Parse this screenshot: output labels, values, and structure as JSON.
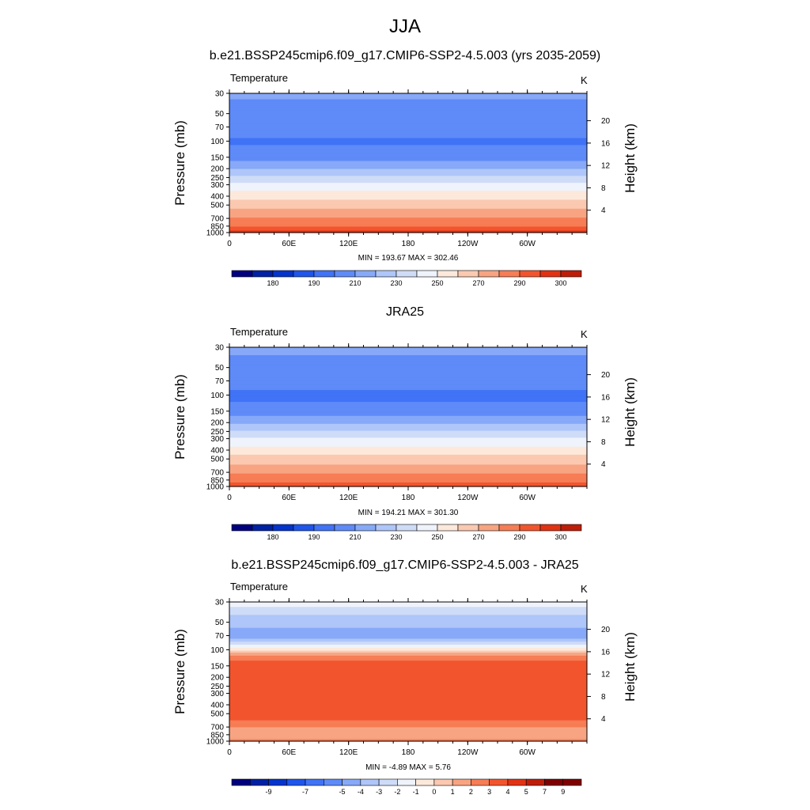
{
  "figure": {
    "title": "JJA"
  },
  "chart_data": [
    {
      "type": "heatmap",
      "title": "b.e21.BSSP245cmip6.f09_g17.CMIP6-SSP2-4.5.003 (yrs 2035-2059)",
      "variable": "Temperature",
      "units": "K",
      "xlabel": "",
      "ylabel": "Pressure (mb)",
      "y2label": "Height (km)",
      "x_ticks": [
        "0",
        "60E",
        "120E",
        "180",
        "120W",
        "60W"
      ],
      "x_range": [
        0,
        360
      ],
      "y_ticks": [
        30,
        50,
        70,
        100,
        150,
        200,
        250,
        300,
        400,
        500,
        700,
        850,
        1000
      ],
      "y_range": [
        30,
        1000
      ],
      "y_scale": "log",
      "y2_ticks": [
        4,
        8,
        12,
        16,
        20
      ],
      "stats": "MIN = 193.67  MAX = 302.46",
      "min": 193.67,
      "max": 302.46,
      "levels": [
        175,
        180,
        185,
        190,
        200,
        210,
        220,
        230,
        240,
        250,
        260,
        270,
        280,
        290,
        295,
        300
      ],
      "colorbar_labels": [
        "180",
        "190",
        "210",
        "230",
        "250",
        "270",
        "290",
        "300"
      ],
      "profile": [
        {
          "p": 30,
          "t": 213
        },
        {
          "p": 40,
          "t": 207
        },
        {
          "p": 50,
          "t": 205
        },
        {
          "p": 70,
          "t": 203
        },
        {
          "p": 100,
          "t": 199
        },
        {
          "p": 120,
          "t": 201
        },
        {
          "p": 150,
          "t": 206
        },
        {
          "p": 175,
          "t": 212
        },
        {
          "p": 200,
          "t": 220
        },
        {
          "p": 230,
          "t": 228
        },
        {
          "p": 250,
          "t": 233
        },
        {
          "p": 300,
          "t": 243
        },
        {
          "p": 350,
          "t": 250
        },
        {
          "p": 400,
          "t": 256
        },
        {
          "p": 450,
          "t": 262
        },
        {
          "p": 500,
          "t": 266
        },
        {
          "p": 600,
          "t": 274
        },
        {
          "p": 700,
          "t": 281
        },
        {
          "p": 800,
          "t": 286
        },
        {
          "p": 850,
          "t": 289
        },
        {
          "p": 925,
          "t": 293
        },
        {
          "p": 1000,
          "t": 297
        }
      ]
    },
    {
      "type": "heatmap",
      "title": "JRA25",
      "variable": "Temperature",
      "units": "K",
      "xlabel": "",
      "ylabel": "Pressure (mb)",
      "y2label": "Height (km)",
      "x_ticks": [
        "0",
        "60E",
        "120E",
        "180",
        "120W",
        "60W"
      ],
      "x_range": [
        0,
        360
      ],
      "y_ticks": [
        30,
        50,
        70,
        100,
        150,
        200,
        250,
        300,
        400,
        500,
        700,
        850,
        1000
      ],
      "y_range": [
        30,
        1000
      ],
      "y_scale": "log",
      "y2_ticks": [
        4,
        8,
        12,
        16,
        20
      ],
      "stats": "MIN = 194.21  MAX = 301.30",
      "min": 194.21,
      "max": 301.3,
      "levels": [
        175,
        180,
        185,
        190,
        200,
        210,
        220,
        230,
        240,
        250,
        260,
        270,
        280,
        290,
        295,
        300
      ],
      "colorbar_labels": [
        "180",
        "190",
        "210",
        "230",
        "250",
        "270",
        "290",
        "300"
      ],
      "profile": [
        {
          "p": 30,
          "t": 214
        },
        {
          "p": 40,
          "t": 208
        },
        {
          "p": 50,
          "t": 206
        },
        {
          "p": 70,
          "t": 204
        },
        {
          "p": 100,
          "t": 198
        },
        {
          "p": 120,
          "t": 200
        },
        {
          "p": 150,
          "t": 206
        },
        {
          "p": 175,
          "t": 211
        },
        {
          "p": 200,
          "t": 218
        },
        {
          "p": 230,
          "t": 226
        },
        {
          "p": 250,
          "t": 231
        },
        {
          "p": 300,
          "t": 241
        },
        {
          "p": 350,
          "t": 248
        },
        {
          "p": 400,
          "t": 254
        },
        {
          "p": 450,
          "t": 260
        },
        {
          "p": 500,
          "t": 264
        },
        {
          "p": 600,
          "t": 272
        },
        {
          "p": 700,
          "t": 279
        },
        {
          "p": 800,
          "t": 284
        },
        {
          "p": 850,
          "t": 287
        },
        {
          "p": 925,
          "t": 292
        },
        {
          "p": 1000,
          "t": 295
        }
      ]
    },
    {
      "type": "heatmap",
      "title": "b.e21.BSSP245cmip6.f09_g17.CMIP6-SSP2-4.5.003 - JRA25",
      "variable": "Temperature",
      "units": "K",
      "xlabel": "",
      "ylabel": "Pressure (mb)",
      "y2label": "Height (km)",
      "x_ticks": [
        "0",
        "60E",
        "120E",
        "180",
        "120W",
        "60W"
      ],
      "x_range": [
        0,
        360
      ],
      "y_ticks": [
        30,
        50,
        70,
        100,
        150,
        200,
        250,
        300,
        400,
        500,
        700,
        850,
        1000
      ],
      "y_range": [
        30,
        1000
      ],
      "y_scale": "log",
      "y2_ticks": [
        4,
        8,
        12,
        16,
        20
      ],
      "stats": "MIN = -4.89  MAX =   5.76",
      "min": -4.89,
      "max": 5.76,
      "levels": [
        -11,
        -9,
        -8,
        -7,
        -6,
        -5,
        -4,
        -3,
        -2,
        -1,
        0,
        1,
        2,
        3,
        4,
        5,
        7,
        9
      ],
      "colorbar_labels": [
        "-9",
        "-7",
        "-5",
        "-4",
        "-3",
        "-2",
        "-1",
        "0",
        "1",
        "2",
        "3",
        "4",
        "5",
        "7",
        "9"
      ],
      "profile": [
        {
          "p": 30,
          "t": -1.5
        },
        {
          "p": 38,
          "t": -2.5
        },
        {
          "p": 45,
          "t": -3.5
        },
        {
          "p": 55,
          "t": -3.8
        },
        {
          "p": 62,
          "t": -4.3
        },
        {
          "p": 70,
          "t": -4.6
        },
        {
          "p": 80,
          "t": -3.5
        },
        {
          "p": 90,
          "t": -1.5
        },
        {
          "p": 100,
          "t": -0.5
        },
        {
          "p": 110,
          "t": 1.5
        },
        {
          "p": 125,
          "t": 2.5
        },
        {
          "p": 140,
          "t": 3.5
        },
        {
          "p": 200,
          "t": 3.6
        },
        {
          "p": 400,
          "t": 3.6
        },
        {
          "p": 550,
          "t": 3.4
        },
        {
          "p": 650,
          "t": 2.5
        },
        {
          "p": 750,
          "t": 1.5
        },
        {
          "p": 850,
          "t": 1.2
        },
        {
          "p": 950,
          "t": 2.0
        },
        {
          "p": 1000,
          "t": 3.0
        }
      ]
    }
  ],
  "colors": {
    "blue_red_palette": [
      "#00007f",
      "#0021a3",
      "#0434cc",
      "#1f55eb",
      "#4073f6",
      "#5e8bf8",
      "#87a9f8",
      "#aec6f9",
      "#cfdcf8",
      "#eff3fb",
      "#fde9dc",
      "#fbc9b0",
      "#f8a482",
      "#f67d55",
      "#f2552e",
      "#e23214",
      "#be1e09",
      "#7f0000"
    ]
  }
}
